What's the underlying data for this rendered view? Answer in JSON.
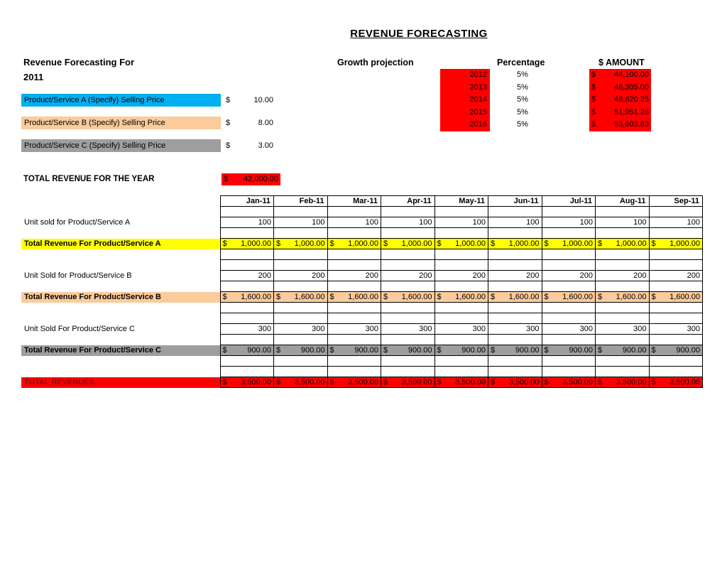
{
  "title": "REVENUE FORECASTING",
  "header": {
    "heading_line1": "Revenue Forecasting For",
    "heading_line2": "2011"
  },
  "products": [
    {
      "label": "Product/Service A (Specify) Selling Price",
      "currency": "$",
      "price": "10.00",
      "highlight": "#00b0f0"
    },
    {
      "label": "Product/Service B (Specify) Selling Price",
      "currency": "$",
      "price": "8.00",
      "highlight": "#fbcb9b"
    },
    {
      "label": "Product/Service C (Specify) Selling Price",
      "currency": "$",
      "price": "3.00",
      "highlight": "#9e9e9e"
    }
  ],
  "annual_total": {
    "label": "TOTAL REVENUE FOR THE YEAR",
    "currency": "$",
    "value": "42,000.00",
    "highlight": "#ff0000"
  },
  "growth_projection": {
    "title": "Growth projection",
    "col_percentage": "Percentage",
    "col_amount": "$ AMOUNT",
    "highlight": "#ff0000",
    "rows": [
      {
        "year": "2012",
        "percent": "5%",
        "currency": "$",
        "amount": "44,100.00"
      },
      {
        "year": "2013",
        "percent": "5%",
        "currency": "$",
        "amount": "46,305.00"
      },
      {
        "year": "2014",
        "percent": "5%",
        "currency": "$",
        "amount": "48,620.25"
      },
      {
        "year": "2015",
        "percent": "5%",
        "currency": "$",
        "amount": "51,051.26"
      },
      {
        "year": "2016",
        "percent": "5%",
        "currency": "$",
        "amount": "53,603.83"
      }
    ]
  },
  "monthly_table": {
    "months": [
      "Jan-11",
      "Feb-11",
      "Mar-11",
      "Apr-11",
      "May-11",
      "Jun-11",
      "Jul-11",
      "Aug-11",
      "Sep-11"
    ],
    "rows": [
      {
        "type": "blank"
      },
      {
        "type": "units",
        "label": "Unit sold for Product/Service A",
        "values": [
          "100",
          "100",
          "100",
          "100",
          "100",
          "100",
          "100",
          "100",
          "100"
        ]
      },
      {
        "type": "blank"
      },
      {
        "type": "money",
        "label": "Total Revenue For Product/Service A",
        "highlight": "#ffff00",
        "currency": "$",
        "values": [
          "1,000.00",
          "1,000.00",
          "1,000.00",
          "1,000.00",
          "1,000.00",
          "1,000.00",
          "1,000.00",
          "1,000.00",
          "1,000.00"
        ]
      },
      {
        "type": "blank"
      },
      {
        "type": "blank"
      },
      {
        "type": "units",
        "label": "Unit Sold for Product/Service B",
        "values": [
          "200",
          "200",
          "200",
          "200",
          "200",
          "200",
          "200",
          "200",
          "200"
        ]
      },
      {
        "type": "blank"
      },
      {
        "type": "money",
        "label": "Total Revenue For Product/Service B",
        "highlight": "#fbcb9b",
        "currency": "$",
        "values": [
          "1,600.00",
          "1,600.00",
          "1,600.00",
          "1,600.00",
          "1,600.00",
          "1,600.00",
          "1,600.00",
          "1,600.00",
          "1,600.00"
        ]
      },
      {
        "type": "blank"
      },
      {
        "type": "blank"
      },
      {
        "type": "units",
        "label": "Unit Sold For Product/Service C",
        "values": [
          "300",
          "300",
          "300",
          "300",
          "300",
          "300",
          "300",
          "300",
          "300"
        ]
      },
      {
        "type": "blank"
      },
      {
        "type": "money",
        "label": "Total Revenue For Product/Service C",
        "highlight": "#9e9e9e",
        "currency": "$",
        "values": [
          "900.00",
          "900.00",
          "900.00",
          "900.00",
          "900.00",
          "900.00",
          "900.00",
          "900.00",
          "900.00"
        ]
      },
      {
        "type": "blank"
      },
      {
        "type": "blank"
      },
      {
        "type": "money",
        "label": "TOTAL REVENUES",
        "highlight": "#ff0000",
        "label_color": "#7f1010",
        "currency": "$",
        "values": [
          "3,500.00",
          "3,500.00",
          "3,500.00",
          "3,500.00",
          "3,500.00",
          "3,500.00",
          "3,500.00",
          "3,500.00",
          "3,500.00"
        ]
      }
    ]
  }
}
